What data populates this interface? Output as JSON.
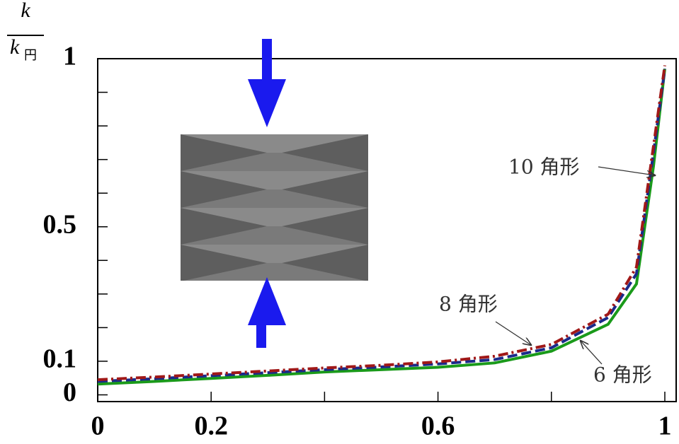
{
  "chart_data": {
    "type": "line",
    "ylabel_num": "k",
    "ylabel_den": "k",
    "ylabel_den_sub": "円",
    "x": [
      0,
      0.1,
      0.2,
      0.3,
      0.4,
      0.5,
      0.6,
      0.7,
      0.8,
      0.9,
      0.95,
      0.98,
      1
    ],
    "series": [
      {
        "name": "6 角形",
        "color": "#1a9a1a",
        "dash": "solid",
        "values": [
          0.032,
          0.04,
          0.049,
          0.058,
          0.068,
          0.075,
          0.082,
          0.095,
          0.13,
          0.21,
          0.33,
          0.68,
          0.97
        ]
      },
      {
        "name": "8 角形",
        "color": "#1a2a8a",
        "dash": "dashed",
        "values": [
          0.04,
          0.048,
          0.057,
          0.066,
          0.075,
          0.083,
          0.092,
          0.105,
          0.14,
          0.23,
          0.36,
          0.72,
          0.97
        ]
      },
      {
        "name": "10 角形",
        "color": "#a01818",
        "dash": "dashdot",
        "values": [
          0.045,
          0.053,
          0.062,
          0.071,
          0.08,
          0.088,
          0.098,
          0.115,
          0.15,
          0.24,
          0.38,
          0.74,
          0.98
        ]
      }
    ],
    "xlim": [
      0,
      1.02
    ],
    "ylim": [
      -0.02,
      1
    ],
    "xticks": [
      0,
      0.2,
      0.6,
      1
    ],
    "xminor_ticks": [
      0.4,
      0.8
    ],
    "yticks": [
      0,
      0.1,
      0.5,
      1
    ],
    "yminor_ticks": [
      0.2,
      0.3,
      0.4,
      0.6,
      0.7,
      0.8,
      0.9
    ]
  }
}
